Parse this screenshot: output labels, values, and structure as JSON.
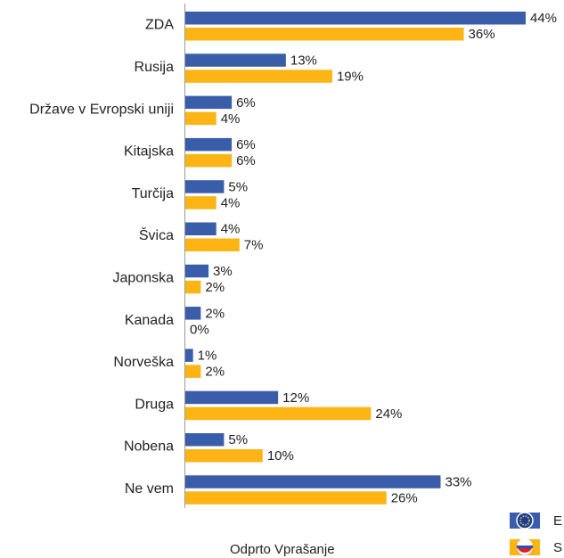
{
  "chart_data": {
    "type": "hbar",
    "categories": [
      "ZDA",
      "Rusija",
      "Države v Evropski uniji",
      "Kitajska",
      "Turčija",
      "Švica",
      "Japonska",
      "Kanada",
      "Norveška",
      "Druga",
      "Nobena",
      "Ne vem"
    ],
    "series": [
      {
        "name": "E",
        "color": "#3a5daa",
        "values": [
          44,
          13,
          6,
          6,
          5,
          4,
          3,
          2,
          1,
          12,
          5,
          33
        ],
        "value_labels": [
          "44%",
          "13%",
          "6%",
          "6%",
          "5%",
          "4%",
          "3%",
          "2%",
          "1%",
          "12%",
          "5%",
          "33%"
        ]
      },
      {
        "name": "S",
        "color": "#fcb514",
        "values": [
          36,
          19,
          4,
          6,
          4,
          7,
          2,
          0,
          2,
          24,
          10,
          26
        ],
        "value_labels": [
          "36%",
          "19%",
          "4%",
          "6%",
          "4%",
          "7%",
          "2%",
          "0%",
          "2%",
          "24%",
          "10%",
          "26%"
        ]
      }
    ],
    "x_label": "Odprto Vprašanje"
  }
}
